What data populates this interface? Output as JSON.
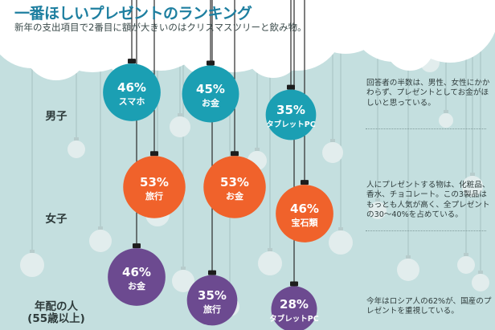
{
  "title": "一番ほしいプレゼントのランキング",
  "subtitle": "新年の支出項目で2番目に額が大きいのはクリスマスツリーと飲み物。",
  "colors": {
    "background": "#c4dfdf",
    "cloud": "#ffffff",
    "decor_ball": "#e2eded",
    "string": "#2a2a2a",
    "男子": "#1b9fb3",
    "女子": "#f0622b",
    "年配の人": "#6c4a90"
  },
  "notes": [
    "回答者の半数は、男性、女性にかかわらず、プレゼントとしてお金がほしいと思っている。",
    "人にプレゼントする物は、化粧品、香水、チョコレート。この3製品はもっとも人気が高く、全プレゼントの30～40%を占めている。",
    "今年はロシア人の62%が、国産のプレゼントを重視している。"
  ],
  "chart_data": {
    "type": "bubble",
    "title": "一番ほしいプレゼントのランキング",
    "subtitle": "新年の支出項目で2番目に額が大きいのはクリスマスツリーと飲み物。",
    "unit": "%",
    "groups": [
      {
        "name": "男子",
        "items": [
          {
            "rank": 1,
            "label": "スマホ",
            "value": 46
          },
          {
            "rank": 2,
            "label": "お金",
            "value": 45
          },
          {
            "rank": 3,
            "label": "タブレットPC",
            "value": 35
          }
        ]
      },
      {
        "name": "女子",
        "items": [
          {
            "rank": 1,
            "label": "旅行",
            "value": 53
          },
          {
            "rank": 2,
            "label": "お金",
            "value": 53
          },
          {
            "rank": 3,
            "label": "宝石類",
            "value": 46
          }
        ]
      },
      {
        "name": "年配の人\n(55歳以上)",
        "items": [
          {
            "rank": 1,
            "label": "お金",
            "value": 46
          },
          {
            "rank": 2,
            "label": "旅行",
            "value": 35
          },
          {
            "rank": 3,
            "label": "タブレットPC",
            "value": 28
          }
        ]
      }
    ]
  }
}
